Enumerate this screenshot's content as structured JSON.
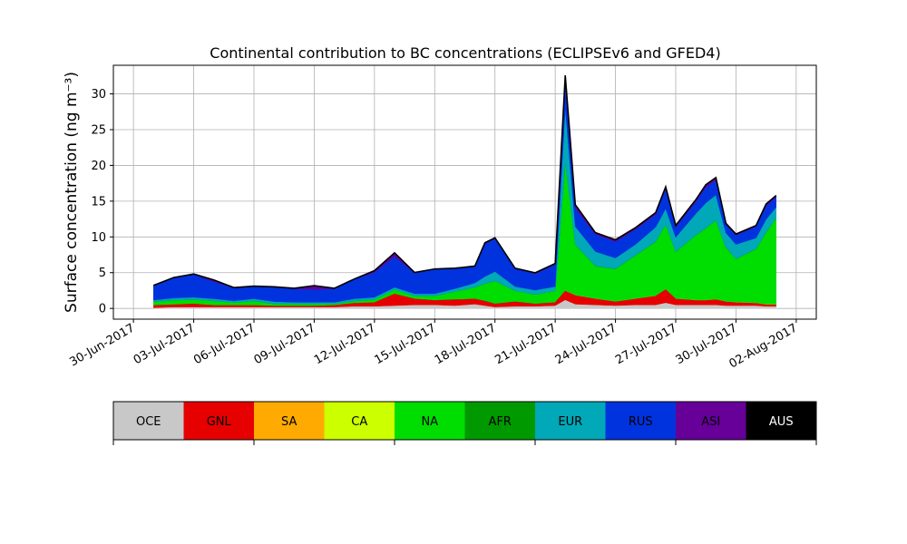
{
  "chart_data": {
    "type": "area",
    "title": "Continental contribution to BC concentrations (ECLIPSEv6 and GFED4)",
    "ylabel": "Surface concentration (ng m⁻³)",
    "xlabel": "",
    "grid": true,
    "stacked": true,
    "xlim": [
      "2017-06-29",
      "2017-08-03"
    ],
    "ylim": [
      -1.5,
      34
    ],
    "yticks": [
      0,
      5,
      10,
      15,
      20,
      25,
      30
    ],
    "xtick_dates": [
      "2017-06-30",
      "2017-07-03",
      "2017-07-06",
      "2017-07-09",
      "2017-07-12",
      "2017-07-15",
      "2017-07-18",
      "2017-07-21",
      "2017-07-24",
      "2017-07-27",
      "2017-07-30",
      "2017-08-02"
    ],
    "xtick_labels": [
      "30-Jun-2017",
      "03-Jul-2017",
      "06-Jul-2017",
      "09-Jul-2017",
      "12-Jul-2017",
      "15-Jul-2017",
      "18-Jul-2017",
      "21-Jul-2017",
      "24-Jul-2017",
      "27-Jul-2017",
      "30-Jul-2017",
      "02-Aug-2017"
    ],
    "x": [
      "2017-07-01",
      "2017-07-02",
      "2017-07-03",
      "2017-07-04",
      "2017-07-05",
      "2017-07-06",
      "2017-07-07",
      "2017-07-08",
      "2017-07-09",
      "2017-07-10",
      "2017-07-11",
      "2017-07-12",
      "2017-07-13",
      "2017-07-14",
      "2017-07-15",
      "2017-07-16",
      "2017-07-17",
      "2017-07-17 12:00",
      "2017-07-18",
      "2017-07-19",
      "2017-07-20",
      "2017-07-21",
      "2017-07-21 12:00",
      "2017-07-22",
      "2017-07-23",
      "2017-07-24",
      "2017-07-25",
      "2017-07-26",
      "2017-07-26 12:00",
      "2017-07-27",
      "2017-07-28",
      "2017-07-28 12:00",
      "2017-07-29",
      "2017-07-29 12:00",
      "2017-07-30",
      "2017-07-31",
      "2017-07-31 12:00",
      "2017-08-01"
    ],
    "series": [
      {
        "name": "OCE",
        "color": "#c8c8c8",
        "values": [
          0.1,
          0.2,
          0.2,
          0.2,
          0.2,
          0.2,
          0.2,
          0.2,
          0.2,
          0.2,
          0.3,
          0.3,
          0.4,
          0.5,
          0.5,
          0.4,
          0.6,
          0.4,
          0.2,
          0.3,
          0.3,
          0.4,
          1.2,
          0.6,
          0.5,
          0.4,
          0.5,
          0.5,
          0.8,
          0.5,
          0.5,
          0.5,
          0.5,
          0.4,
          0.4,
          0.4,
          0.3,
          0.3
        ]
      },
      {
        "name": "GNL",
        "color": "#e60000",
        "values": [
          0.3,
          0.3,
          0.4,
          0.2,
          0.2,
          0.2,
          0.1,
          0.1,
          0.1,
          0.2,
          0.4,
          0.5,
          1.6,
          0.8,
          0.6,
          0.8,
          0.7,
          0.6,
          0.4,
          0.6,
          0.3,
          0.4,
          1.2,
          1.2,
          0.8,
          0.5,
          0.8,
          1.2,
          1.8,
          0.8,
          0.6,
          0.6,
          0.7,
          0.5,
          0.4,
          0.3,
          0.2,
          0.2
        ]
      },
      {
        "name": "SA",
        "color": "#ffaa00",
        "values": [
          0.02,
          0.02,
          0.02,
          0.02,
          0.02,
          0.02,
          0.02,
          0.02,
          0.02,
          0.02,
          0.02,
          0.02,
          0.02,
          0.02,
          0.02,
          0.02,
          0.02,
          0.02,
          0.02,
          0.02,
          0.02,
          0.02,
          0.05,
          0.05,
          0.05,
          0.05,
          0.05,
          0.05,
          0.05,
          0.05,
          0.05,
          0.05,
          0.05,
          0.05,
          0.05,
          0.05,
          0.05,
          0.05
        ]
      },
      {
        "name": "CA",
        "color": "#ccff00",
        "values": [
          0.02,
          0.02,
          0.02,
          0.02,
          0.02,
          0.02,
          0.02,
          0.02,
          0.02,
          0.02,
          0.02,
          0.02,
          0.02,
          0.02,
          0.02,
          0.02,
          0.02,
          0.02,
          0.02,
          0.02,
          0.02,
          0.02,
          0.05,
          0.05,
          0.05,
          0.05,
          0.05,
          0.05,
          0.05,
          0.05,
          0.05,
          0.05,
          0.05,
          0.05,
          0.05,
          0.05,
          0.05,
          0.05
        ]
      },
      {
        "name": "NA",
        "color": "#00dd00",
        "values": [
          0.5,
          0.6,
          0.6,
          0.6,
          0.4,
          0.6,
          0.3,
          0.3,
          0.3,
          0.2,
          0.3,
          0.4,
          0.6,
          0.4,
          0.6,
          1.1,
          1.6,
          2.4,
          3.2,
          1.5,
          1.3,
          1.6,
          18.0,
          7.0,
          4.5,
          4.5,
          6.0,
          7.5,
          9.0,
          6.5,
          9.0,
          10.0,
          11.0,
          7.5,
          6.0,
          7.5,
          10.0,
          12.0
        ]
      },
      {
        "name": "AFR",
        "color": "#009900",
        "values": [
          0.02,
          0.02,
          0.02,
          0.02,
          0.02,
          0.02,
          0.02,
          0.02,
          0.02,
          0.02,
          0.02,
          0.02,
          0.02,
          0.02,
          0.02,
          0.02,
          0.02,
          0.02,
          0.02,
          0.02,
          0.02,
          0.02,
          0.05,
          0.05,
          0.05,
          0.05,
          0.05,
          0.05,
          0.05,
          0.05,
          0.05,
          0.05,
          0.05,
          0.05,
          0.05,
          0.05,
          0.05,
          0.05
        ]
      },
      {
        "name": "EUR",
        "color": "#00a8b8",
        "values": [
          0.2,
          0.3,
          0.3,
          0.3,
          0.2,
          0.3,
          0.3,
          0.2,
          0.2,
          0.2,
          0.3,
          0.3,
          0.3,
          0.3,
          0.3,
          0.4,
          0.6,
          1.0,
          1.3,
          0.6,
          0.6,
          0.6,
          7.5,
          2.5,
          2.0,
          1.5,
          1.5,
          2.0,
          2.2,
          2.0,
          3.0,
          3.5,
          3.5,
          2.0,
          2.0,
          1.5,
          1.8,
          1.5
        ]
      },
      {
        "name": "RUS",
        "color": "#0033dd",
        "values": [
          2.0,
          2.8,
          3.2,
          2.4,
          1.8,
          1.7,
          2.0,
          1.9,
          1.8,
          1.9,
          2.7,
          3.5,
          4.3,
          2.9,
          3.4,
          2.8,
          2.3,
          4.6,
          4.6,
          2.5,
          2.3,
          3.1,
          3.5,
          2.6,
          2.4,
          2.3,
          2.1,
          1.8,
          2.8,
          1.4,
          1.7,
          2.2,
          2.1,
          1.2,
          1.3,
          1.6,
          1.9,
          1.4
        ]
      },
      {
        "name": "ASI",
        "color": "#660099",
        "values": [
          0.04,
          0.04,
          0.04,
          0.2,
          0.04,
          0.04,
          0.04,
          0.04,
          0.5,
          0.04,
          0.04,
          0.2,
          0.5,
          0.04,
          0.04,
          0.04,
          0.04,
          0.1,
          0.1,
          0.04,
          0.1,
          0.1,
          1.0,
          0.4,
          0.2,
          0.2,
          0.2,
          0.2,
          0.2,
          0.2,
          0.2,
          0.3,
          0.3,
          0.1,
          0.1,
          0.1,
          0.2,
          0.2
        ]
      },
      {
        "name": "AUS",
        "color": "#000000",
        "values": [
          0.02,
          0.02,
          0.02,
          0.02,
          0.02,
          0.02,
          0.02,
          0.02,
          0.02,
          0.02,
          0.02,
          0.02,
          0.02,
          0.02,
          0.02,
          0.02,
          0.02,
          0.02,
          0.02,
          0.02,
          0.02,
          0.02,
          0.05,
          0.05,
          0.05,
          0.05,
          0.05,
          0.05,
          0.05,
          0.05,
          0.05,
          0.05,
          0.05,
          0.05,
          0.05,
          0.05,
          0.05,
          0.05
        ]
      }
    ],
    "legend": {
      "placement": "bottom",
      "labels": [
        "OCE",
        "GNL",
        "SA",
        "CA",
        "NA",
        "AFR",
        "EUR",
        "RUS",
        "ASI",
        "AUS"
      ],
      "label_colors": [
        "#000000",
        "#000000",
        "#000000",
        "#000000",
        "#000000",
        "#000000",
        "#000000",
        "#000000",
        "#000000",
        "#ffffff"
      ]
    }
  }
}
